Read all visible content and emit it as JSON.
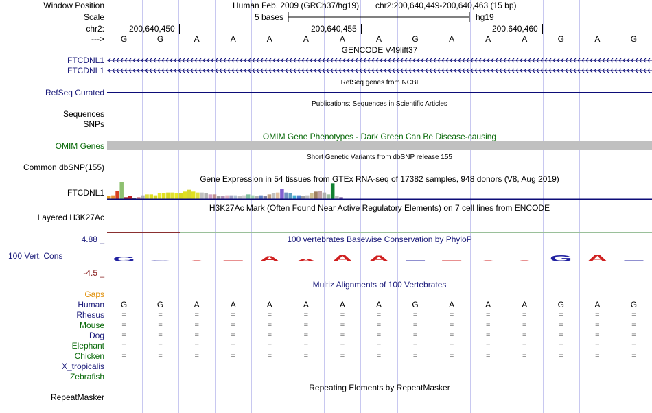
{
  "header": {
    "window_position_label": "Window Position",
    "scale_label": "Scale",
    "chr_label": "chr2:",
    "arrow_label": "--->",
    "assembly_text": "Human Feb. 2009 (GRCh37/hg19)",
    "position_text": "chr2:200,640,449-200,640,463 (15 bp)",
    "scale_bases": "5 bases",
    "scale_db": "hg19",
    "coord_ticks": [
      "200,640,450",
      "200,640,455",
      "200,640,460"
    ],
    "bases": [
      "G",
      "G",
      "A",
      "A",
      "A",
      "A",
      "A",
      "A",
      "G",
      "A",
      "A",
      "A",
      "G",
      "A",
      "G"
    ]
  },
  "tracks": {
    "gencode": {
      "title": "GENCODE V49lift37",
      "rows": [
        "FTCDNL1",
        "FTCDNL1"
      ]
    },
    "refseq": {
      "title": "RefSeq genes from NCBI",
      "label": "RefSeq Curated"
    },
    "publications": {
      "title": "Publications: Sequences in Scientific Articles",
      "label": "Sequences"
    },
    "snps_label": "SNPs",
    "omim": {
      "title": "OMIM Gene Phenotypes - Dark Green Can Be Disease-causing",
      "label": "OMIM Genes"
    },
    "dbsnp": {
      "title": "Short Genetic Variants from dbSNP release 155",
      "label": "Common dbSNP(155)"
    },
    "gtex": {
      "title": "Gene Expression in 54 tissues from GTEx RNA-seq of 17382 samples, 948 donors (V8, Aug 2019)",
      "label": "FTCDNL1",
      "bar_values": [
        3,
        4,
        9,
        18,
        2,
        3,
        1,
        2,
        4,
        5,
        5,
        4,
        6,
        6,
        7,
        7,
        6,
        6,
        8,
        10,
        8,
        7,
        7,
        6,
        5,
        5,
        3,
        3,
        4,
        4,
        4,
        3,
        4,
        5,
        4,
        3,
        4,
        3,
        5,
        6,
        7,
        11,
        7,
        6,
        4,
        4,
        3,
        4,
        6,
        8,
        9,
        7,
        5,
        17,
        3,
        2
      ],
      "bar_colors": [
        "#e8a020",
        "#e89030",
        "#d84020",
        "#8ec070",
        "#a02020",
        "#c02020",
        "#606060",
        "#d07070",
        "#b0b0b0",
        "#e0e040",
        "#e0e020",
        "#d8d820",
        "#e8e830",
        "#e0e020",
        "#d8d820",
        "#e0e030",
        "#e8e820",
        "#d8d820",
        "#e0e020",
        "#d8d830",
        "#e0e020",
        "#e0e040",
        "#c0c0c0",
        "#b0b0b0",
        "#d0a0c0",
        "#c09090",
        "#a0a0a0",
        "#b090b0",
        "#e0b0c0",
        "#a0a0c0",
        "#b0c0d0",
        "#c0c0c0",
        "#d0d0d0",
        "#80c0a0",
        "#a0d0b0",
        "#b0b0b0",
        "#6080c0",
        "#8080a0",
        "#c0a080",
        "#c0c0c0",
        "#e0c0a0",
        "#8060d0",
        "#7090c0",
        "#60a0c0",
        "#40b0d0",
        "#5080d0",
        "#a0a0a0",
        "#c0c0c0",
        "#d0c090",
        "#a08060",
        "#c0a0a0",
        "#b0b0b0",
        "#a0c0a0",
        "#108030",
        "#c0c0c0",
        "#8060a0"
      ]
    },
    "h3k27ac": {
      "title": "H3K27Ac Mark (Often Found Near Active Regulatory Elements) on 7 cell lines from ENCODE",
      "label": "Layered H3K27Ac"
    },
    "conservation": {
      "title": "100 vertebrates Basewise Conservation by PhyloP",
      "label": "100 Vert. Cons",
      "y_max_label": "4.88 _",
      "y_min_label": "-4.5 _",
      "logo": [
        {
          "base": "G",
          "height": 0.5,
          "color": "#2020a0"
        },
        {
          "base": "G",
          "height": 0.08,
          "color": "#2020a0"
        },
        {
          "base": "A",
          "height": 0.1,
          "color": "#d02020"
        },
        {
          "base": "A",
          "height": 0.0,
          "color": "#d02020"
        },
        {
          "base": "A",
          "height": 0.55,
          "color": "#d02020"
        },
        {
          "base": "A",
          "height": 0.3,
          "color": "#d02020"
        },
        {
          "base": "A",
          "height": 0.7,
          "color": "#d02020"
        },
        {
          "base": "A",
          "height": 0.6,
          "color": "#d02020"
        },
        {
          "base": "G",
          "height": 0.0,
          "color": "#2020a0"
        },
        {
          "base": "A",
          "height": 0.0,
          "color": "#d02020"
        },
        {
          "base": "A",
          "height": 0.1,
          "color": "#d02020"
        },
        {
          "base": "A",
          "height": 0.1,
          "color": "#d02020"
        },
        {
          "base": "G",
          "height": 0.65,
          "color": "#2020a0"
        },
        {
          "base": "A",
          "height": 0.7,
          "color": "#d02020"
        },
        {
          "base": "G",
          "height": 0.0,
          "color": "#2020a0"
        }
      ]
    },
    "multiz": {
      "title": "Multiz Alignments of 100 Vertebrates",
      "gaps_label": "Gaps",
      "species": [
        {
          "name": "Human",
          "row": [
            "G",
            "G",
            "A",
            "A",
            "A",
            "A",
            "A",
            "A",
            "G",
            "A",
            "A",
            "A",
            "G",
            "A",
            "G"
          ]
        },
        {
          "name": "Rhesus",
          "row": [
            "=",
            "=",
            "=",
            "=",
            "=",
            "=",
            "=",
            "=",
            "=",
            "=",
            "=",
            "=",
            "=",
            "=",
            "="
          ]
        },
        {
          "name": "Mouse",
          "row": [
            "=",
            "=",
            "=",
            "=",
            "=",
            "=",
            "=",
            "=",
            "=",
            "=",
            "=",
            "=",
            "=",
            "=",
            "="
          ]
        },
        {
          "name": "Dog",
          "row": [
            "=",
            "=",
            "=",
            "=",
            "=",
            "=",
            "=",
            "=",
            "=",
            "=",
            "=",
            "=",
            "=",
            "=",
            "="
          ]
        },
        {
          "name": "Elephant",
          "row": [
            "=",
            "=",
            "=",
            "=",
            "=",
            "=",
            "=",
            "=",
            "=",
            "=",
            "=",
            "=",
            "=",
            "=",
            "="
          ]
        },
        {
          "name": "Chicken",
          "row": [
            "=",
            "=",
            "=",
            "=",
            "=",
            "=",
            "=",
            "=",
            "=",
            "=",
            "=",
            "=",
            "=",
            "=",
            "="
          ]
        },
        {
          "name": "X_tropicalis",
          "row": []
        },
        {
          "name": "Zebrafish",
          "row": []
        }
      ]
    },
    "repeatmasker": {
      "title": "Repeating Elements by RepeatMasker",
      "label": "RepeatMasker"
    }
  },
  "colors": {
    "grid": "#c8c8f0",
    "navy": "#1a1a7a",
    "omim_bar": "#c0c0c0",
    "gene_line": "#0c0c78",
    "h3k27ac_line": "#8a3030",
    "green_line": "#9ac09a"
  }
}
